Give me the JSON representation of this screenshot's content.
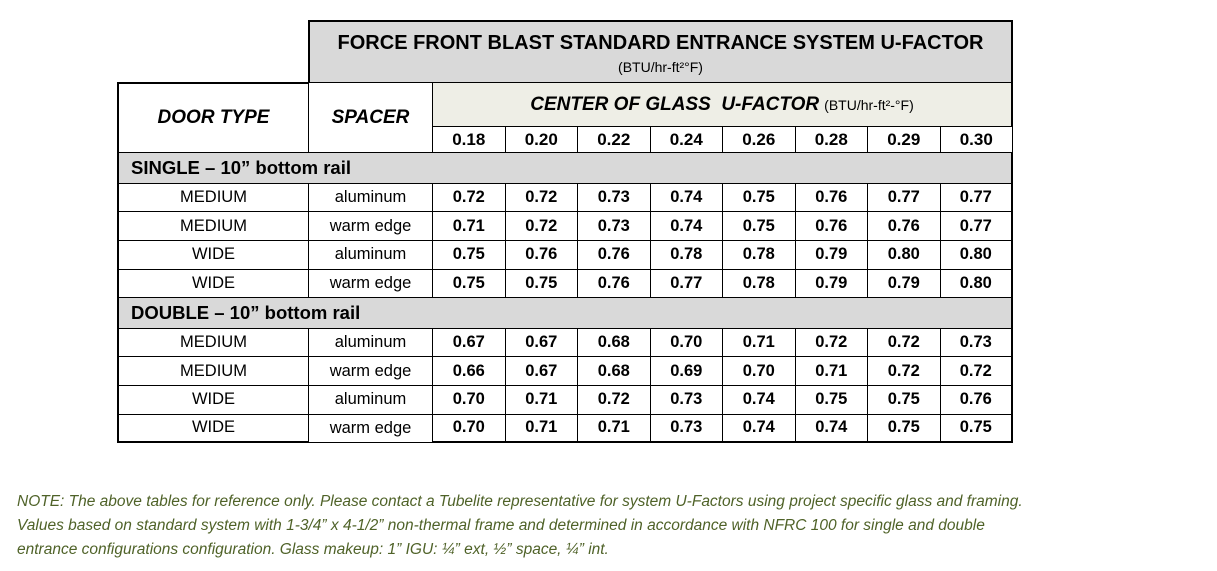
{
  "header": {
    "title": "FORCE FRONT BLAST STANDARD ENTRANCE SYSTEM U-FACTOR",
    "units": "(BTU/hr-ft²°F)"
  },
  "table": {
    "columns": {
      "door_type": "DOOR TYPE",
      "spacer": "SPACER",
      "glass_title": "CENTER OF GLASS  U-FACTOR",
      "glass_units": "(BTU/hr-ft²-°F)",
      "glass_values": [
        "0.18",
        "0.20",
        "0.22",
        "0.24",
        "0.26",
        "0.28",
        "0.29",
        "0.30"
      ]
    },
    "sections": [
      {
        "label": "SINGLE – 10” bottom rail",
        "rows": [
          [
            "MEDIUM",
            "aluminum",
            "0.72",
            "0.72",
            "0.73",
            "0.74",
            "0.75",
            "0.76",
            "0.77",
            "0.77"
          ],
          [
            "MEDIUM",
            "warm edge",
            "0.71",
            "0.72",
            "0.73",
            "0.74",
            "0.75",
            "0.76",
            "0.76",
            "0.77"
          ],
          [
            "WIDE",
            "aluminum",
            "0.75",
            "0.76",
            "0.76",
            "0.78",
            "0.78",
            "0.79",
            "0.80",
            "0.80"
          ],
          [
            "WIDE",
            "warm edge",
            "0.75",
            "0.75",
            "0.76",
            "0.77",
            "0.78",
            "0.79",
            "0.79",
            "0.80"
          ]
        ]
      },
      {
        "label": "DOUBLE – 10” bottom rail",
        "rows": [
          [
            "MEDIUM",
            "aluminum",
            "0.67",
            "0.67",
            "0.68",
            "0.70",
            "0.71",
            "0.72",
            "0.72",
            "0.73"
          ],
          [
            "MEDIUM",
            "warm edge",
            "0.66",
            "0.67",
            "0.68",
            "0.69",
            "0.70",
            "0.71",
            "0.72",
            "0.72"
          ],
          [
            "WIDE",
            "aluminum",
            "0.70",
            "0.71",
            "0.72",
            "0.73",
            "0.74",
            "0.75",
            "0.75",
            "0.76"
          ],
          [
            "WIDE",
            "warm edge",
            "0.70",
            "0.71",
            "0.71",
            "0.73",
            "0.74",
            "0.74",
            "0.75",
            "0.75"
          ]
        ]
      }
    ]
  },
  "note": {
    "lines": [
      "NOTE:  The above tables for reference only.  Please contact a Tubelite representative for system U-Factors using project specific glass and framing.",
      "Values based on standard system with 1-3/4” x 4-1/2” non-thermal frame and determined in accordance with NFRC 100 for single and double",
      "entrance configurations configuration.  Glass makeup:  1” IGU:  ¼” ext, ½” space, ¼” int."
    ]
  }
}
